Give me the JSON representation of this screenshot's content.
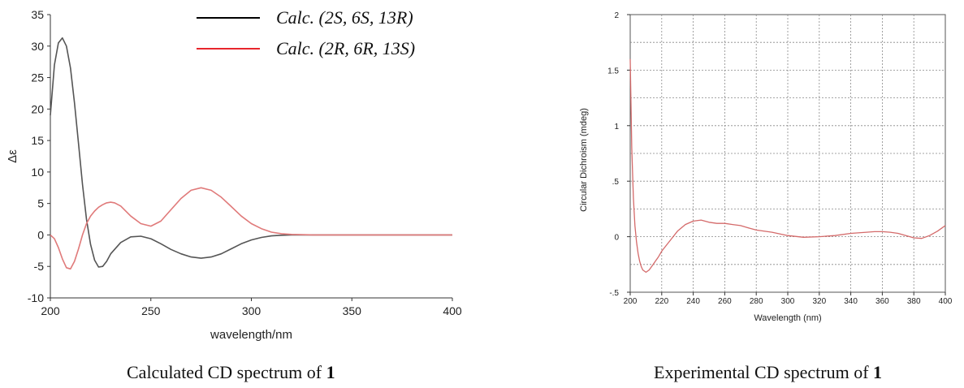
{
  "captions": {
    "left_prefix": "Calculated CD spectrum of",
    "left_bold": "1",
    "right_prefix": "Experimental CD spectrum of",
    "right_bold": "1"
  },
  "chart_data": [
    {
      "type": "line",
      "title": "",
      "xlabel": "wavelength/nm",
      "ylabel": "Δε",
      "xlim": [
        200,
        400
      ],
      "ylim": [
        -10,
        35
      ],
      "xticks": [
        200,
        250,
        300,
        350,
        400
      ],
      "yticks": [
        -10,
        -5,
        0,
        5,
        10,
        15,
        20,
        25,
        30,
        35
      ],
      "grid": false,
      "legend": "top-right",
      "series": [
        {
          "name": "Calc. (2S, 6S, 13R)",
          "color": "#555555",
          "x": [
            200,
            202,
            204,
            206,
            208,
            210,
            212,
            214,
            216,
            218,
            220,
            222,
            224,
            226,
            228,
            230,
            235,
            240,
            245,
            250,
            255,
            260,
            265,
            270,
            275,
            280,
            285,
            290,
            295,
            300,
            305,
            310,
            315,
            320,
            330,
            340,
            400
          ],
          "y": [
            19,
            27,
            30.5,
            31.3,
            30,
            26.5,
            21,
            14.5,
            8,
            2.5,
            -1.5,
            -4,
            -5.1,
            -5,
            -4.2,
            -3,
            -1.2,
            -0.3,
            -0.2,
            -0.6,
            -1.4,
            -2.3,
            -3,
            -3.5,
            -3.7,
            -3.5,
            -3,
            -2.2,
            -1.4,
            -0.8,
            -0.4,
            -0.15,
            -0.05,
            0,
            0,
            0,
            0
          ]
        },
        {
          "name": "Calc. (2R, 6R, 13S)",
          "color": "#e07a7a",
          "x": [
            200,
            202,
            204,
            206,
            208,
            210,
            212,
            214,
            216,
            218,
            220,
            222,
            224,
            226,
            228,
            230,
            232,
            235,
            240,
            245,
            250,
            255,
            260,
            265,
            270,
            275,
            280,
            285,
            290,
            295,
            300,
            305,
            310,
            315,
            320,
            330,
            340,
            400
          ],
          "y": [
            0,
            -0.6,
            -2,
            -3.8,
            -5.2,
            -5.4,
            -4.2,
            -2.2,
            0,
            1.8,
            3,
            3.8,
            4.4,
            4.8,
            5.1,
            5.2,
            5.1,
            4.6,
            3,
            1.8,
            1.4,
            2.2,
            4,
            5.8,
            7.1,
            7.5,
            7.1,
            6,
            4.5,
            3,
            1.8,
            1,
            0.45,
            0.2,
            0.08,
            0,
            0,
            0
          ]
        }
      ]
    },
    {
      "type": "line",
      "title": "",
      "xlabel": "Wavelength (nm)",
      "ylabel": "Circular Dichroism (mdeg)",
      "xlim": [
        200,
        400
      ],
      "ylim": [
        -0.5,
        2
      ],
      "xticks": [
        200,
        220,
        240,
        260,
        280,
        300,
        320,
        340,
        360,
        380,
        400
      ],
      "yticks": [
        -0.5,
        0,
        0.5,
        1,
        1.5,
        2
      ],
      "grid": true,
      "legend": "none",
      "series": [
        {
          "color": "#d46a6a",
          "x": [
            200,
            201,
            202,
            203,
            204,
            205,
            206,
            207,
            208,
            210,
            212,
            214,
            216,
            218,
            220,
            225,
            230,
            235,
            240,
            245,
            250,
            255,
            260,
            265,
            270,
            275,
            280,
            290,
            300,
            310,
            320,
            330,
            340,
            350,
            355,
            360,
            365,
            370,
            375,
            380,
            385,
            390,
            395,
            398,
            400
          ],
          "y": [
            1.6,
            0.8,
            0.35,
            0.1,
            -0.05,
            -0.15,
            -0.22,
            -0.27,
            -0.3,
            -0.32,
            -0.3,
            -0.26,
            -0.22,
            -0.18,
            -0.13,
            -0.04,
            0.05,
            0.11,
            0.14,
            0.15,
            0.13,
            0.12,
            0.12,
            0.11,
            0.1,
            0.08,
            0.06,
            0.04,
            0.01,
            -0.005,
            0,
            0.01,
            0.03,
            0.04,
            0.045,
            0.045,
            0.04,
            0.03,
            0.01,
            -0.01,
            -0.015,
            0.01,
            0.05,
            0.08,
            0.1
          ]
        }
      ]
    }
  ]
}
